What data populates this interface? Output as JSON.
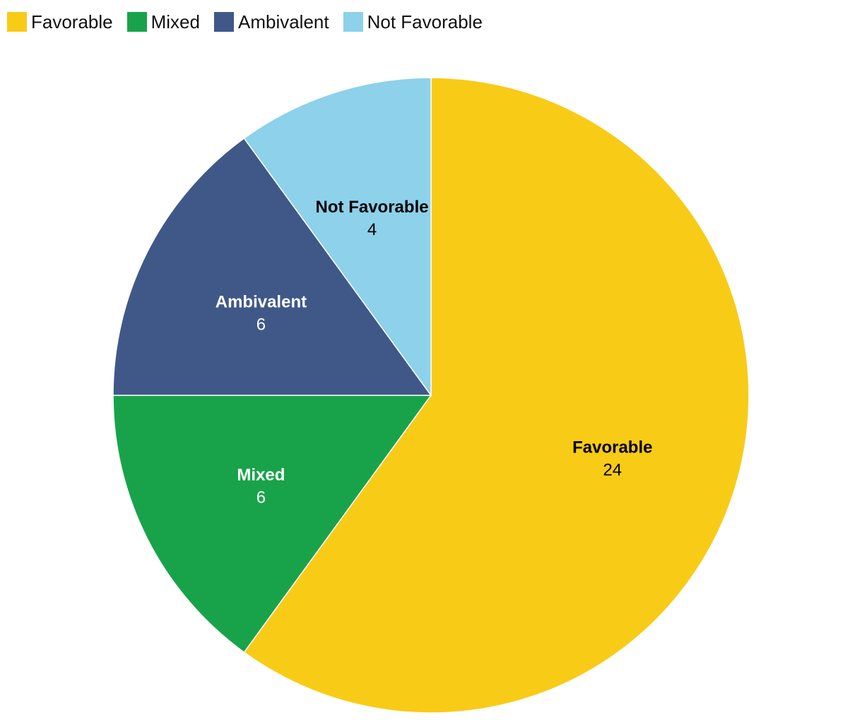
{
  "chart_data": {
    "type": "pie",
    "title": "",
    "categories": [
      "Favorable",
      "Mixed",
      "Ambivalent",
      "Not Favorable"
    ],
    "values": [
      24,
      6,
      6,
      4
    ],
    "colors": [
      "#f8cb17",
      "#18a34b",
      "#3f5888",
      "#8dd1ea"
    ],
    "label_colors": [
      "#000000",
      "#ffffff",
      "#ffffff",
      "#000000"
    ],
    "legend_position": "top-left",
    "start_angle_deg": 0,
    "direction": "clockwise-from-top"
  }
}
